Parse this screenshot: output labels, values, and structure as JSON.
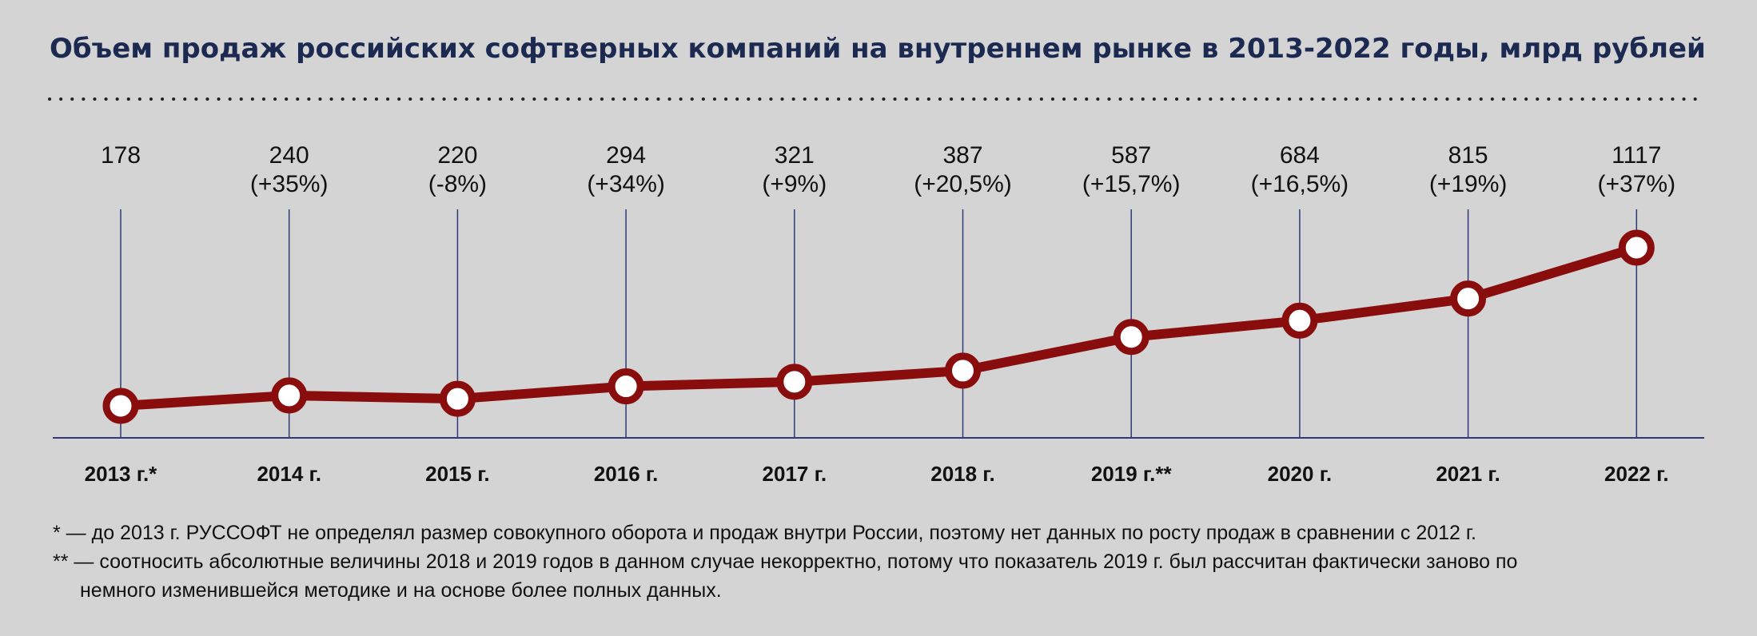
{
  "chart_data": {
    "type": "line",
    "title": "Объем продаж российских софтверных компаний на внутреннем рынке в 2013-2022 годы, млрд рублей",
    "categories": [
      "2013 г.*",
      "2014 г.",
      "2015 г.",
      "2016 г.",
      "2017 г.",
      "2018 г.",
      "2019 г.**",
      "2020 г.",
      "2021 г.",
      "2022 г."
    ],
    "values": [
      178,
      240,
      220,
      294,
      321,
      387,
      587,
      684,
      815,
      1117
    ],
    "value_labels": [
      "178",
      "240",
      "220",
      "294",
      "321",
      "387",
      "587",
      "684",
      "815",
      "1117"
    ],
    "change_labels": [
      "",
      "(+35%)",
      "(-8%)",
      "(+34%)",
      "(+9%)",
      "(+20,5%)",
      "(+15,7%)",
      "(+16,5%)",
      "(+19%)",
      "(+37%)"
    ],
    "xlabel": "",
    "ylabel": "",
    "ylim": [
      0,
      1200
    ],
    "grid": "vertical",
    "colors": {
      "line": "#8a0d0d",
      "marker_fill": "#ffffff",
      "gridline": "#2e3a78",
      "axis": "#2e3a78",
      "title": "#1c2a52",
      "background": "#d4d4d4"
    }
  },
  "footnotes": [
    "* — до 2013 г. РУССОФТ не определял размер совокупного оборота и продаж внутри России, поэтому нет данных по росту продаж в сравнении с 2012 г.",
    "** — соотносить абсолютные величины 2018 и 2019 годов в данном случае некорректно, потому что показатель 2019 г. был рассчитан фактически заново по",
    "немного изменившейся методике и на основе более полных данных."
  ]
}
